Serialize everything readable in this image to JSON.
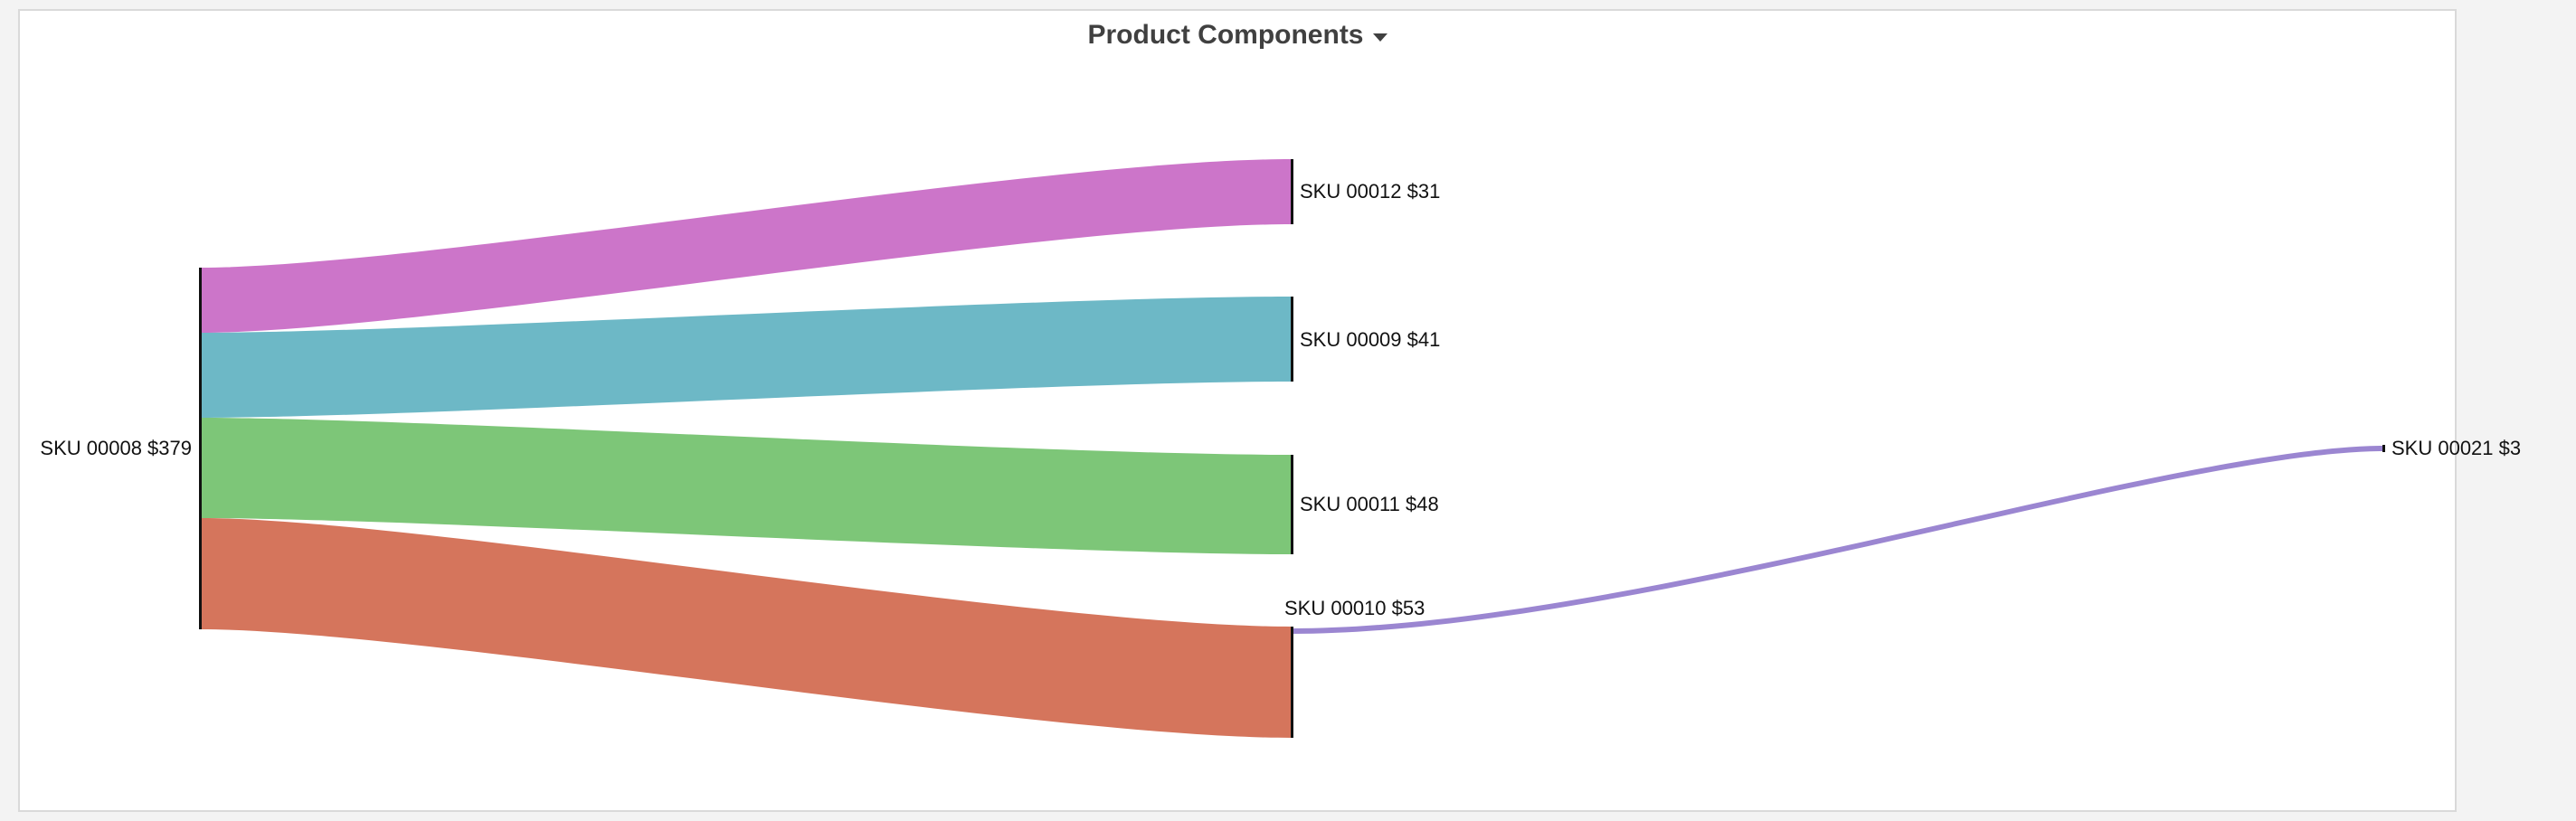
{
  "header": {
    "title": "Product Components"
  },
  "nodes": [
    {
      "id": "n8",
      "label": "SKU 00008 $379"
    },
    {
      "id": "n12",
      "label": "SKU 00012 $31"
    },
    {
      "id": "n9",
      "label": "SKU 00009 $41"
    },
    {
      "id": "n11",
      "label": "SKU 00011 $48"
    },
    {
      "id": "n10",
      "label": "SKU 00010 $53"
    },
    {
      "id": "n21",
      "label": "SKU 00021 $3"
    }
  ],
  "links": [
    {
      "source": "SKU 00008",
      "target": "SKU 00012",
      "color": "#cc75c9"
    },
    {
      "source": "SKU 00008",
      "target": "SKU 00009",
      "color": "#6db8c6"
    },
    {
      "source": "SKU 00008",
      "target": "SKU 00011",
      "color": "#7dc678"
    },
    {
      "source": "SKU 00008",
      "target": "SKU 00010",
      "color": "#d5755c"
    },
    {
      "source": "SKU 00010",
      "target": "SKU 00021",
      "color": "#9b86d1"
    }
  ]
}
